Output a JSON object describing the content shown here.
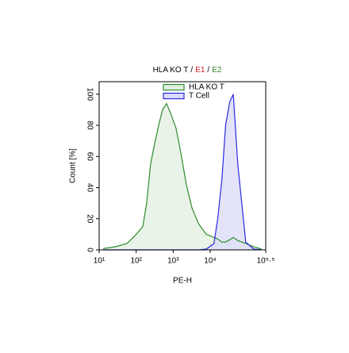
{
  "chart_data": {
    "type": "histogram-overlay",
    "title_parts": [
      {
        "text": "HLA KO T",
        "color": "#000000"
      },
      {
        "text": "/",
        "color": "#000000"
      },
      {
        "text": "E1",
        "color": "#e02020"
      },
      {
        "text": "/",
        "color": "#000000"
      },
      {
        "text": "E2",
        "color": "#2e8b2e"
      }
    ],
    "xlabel": "PE-H",
    "ylabel": "Count [%]",
    "xscale": "log",
    "xlim": [
      10,
      316228
    ],
    "xticks": [
      {
        "value": 10,
        "label": "10¹"
      },
      {
        "value": 100,
        "label": "10²"
      },
      {
        "value": 1000,
        "label": "10³"
      },
      {
        "value": 10000,
        "label": "10⁴"
      },
      {
        "value": 316228,
        "label": "10⁵·⁵"
      }
    ],
    "ylim": [
      0,
      108
    ],
    "yticks": [
      0,
      20,
      40,
      60,
      80,
      100
    ],
    "x": [
      12.8,
      27,
      56,
      92,
      151,
      192,
      245,
      315,
      405,
      518,
      661,
      845,
      1200,
      1620,
      2270,
      3220,
      4800,
      7800,
      12600,
      16000,
      20700,
      26000,
      33700,
      42000,
      55700,
      91000,
      150000,
      245000
    ],
    "series": [
      {
        "name": "HLA KO T",
        "color": "#2e8b2e",
        "fill": "#e3f0e1",
        "values": [
          0.8,
          2,
          4,
          9,
          15,
          30,
          55,
          68,
          80,
          90,
          94,
          88,
          78,
          62,
          42,
          27,
          17,
          10,
          8,
          7,
          5,
          5,
          6.5,
          8,
          6,
          4,
          2,
          0.5
        ]
      },
      {
        "name": "T Cell",
        "color": "#2a2ae0",
        "fill": "#dcdcf7",
        "values": [
          0,
          0,
          0,
          0,
          0,
          0,
          0,
          0,
          0,
          0,
          0,
          0,
          0,
          0,
          0,
          0,
          0,
          0.5,
          4,
          20,
          45,
          80,
          95,
          100,
          55,
          5,
          0.5,
          0
        ]
      }
    ]
  }
}
